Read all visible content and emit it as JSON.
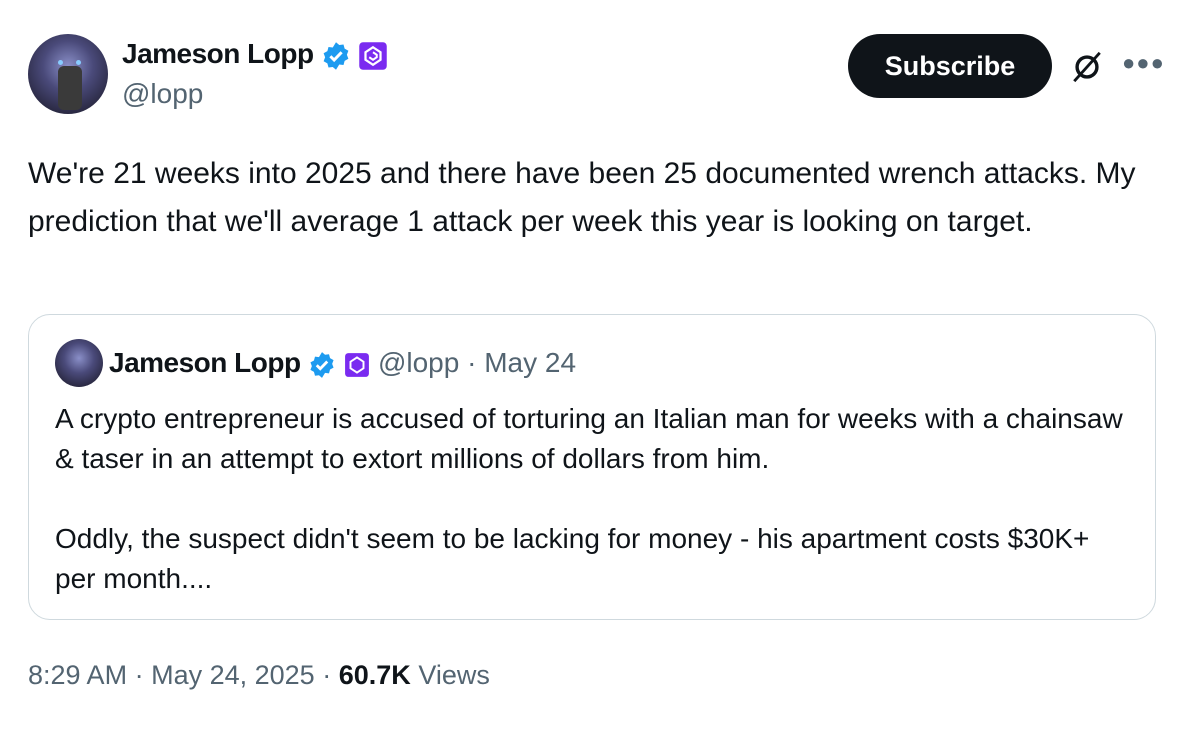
{
  "author": {
    "name": "Jameson Lopp",
    "handle": "@lopp",
    "verified_color": "#1d9bf0",
    "affiliate_color": "#7a2bf0"
  },
  "actions": {
    "subscribe": "Subscribe",
    "grok_icon": "grok-icon",
    "more_icon": "more-icon"
  },
  "tweet": {
    "text": "We're 21 weeks into 2025 and there have been 25 documented wrench attacks. My prediction that we'll average 1 attack per week this year is looking on target."
  },
  "quote": {
    "name": "Jameson Lopp",
    "handle": "@lopp",
    "separator": "·",
    "date": "May 24",
    "text": "A crypto entrepreneur is accused of torturing an Italian man for weeks with a chainsaw & taser in an attempt to extort millions of dollars from him.\n\nOddly, the suspect didn't seem to be lacking for money - his apartment costs $30K+ per month...."
  },
  "footer": {
    "time": "8:29 AM",
    "sep1": "·",
    "date": "May 24, 2025",
    "sep2": "·",
    "views_count": "60.7K",
    "views_label": "Views"
  }
}
